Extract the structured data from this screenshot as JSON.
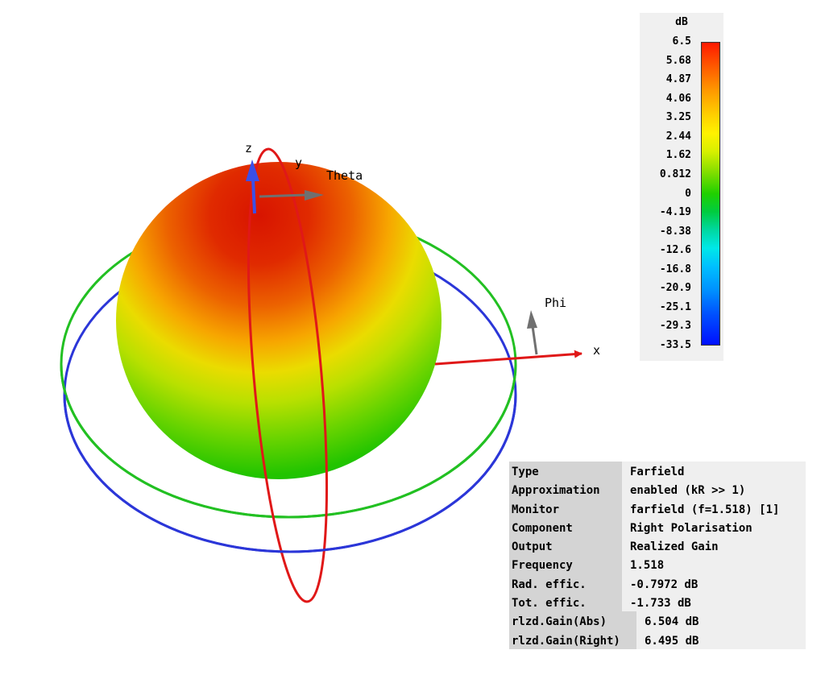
{
  "axes": {
    "x": "x",
    "y": "y",
    "z": "z",
    "theta": "Theta",
    "phi": "Phi"
  },
  "legend": {
    "unit": "dB",
    "ticks": [
      "6.5",
      "5.68",
      "4.87",
      "4.06",
      "3.25",
      "2.44",
      "1.62",
      "0.812",
      "0",
      "-4.19",
      "-8.38",
      "-12.6",
      "-16.8",
      "-20.9",
      "-25.1",
      "-29.3",
      "-33.5"
    ]
  },
  "info": [
    {
      "key": "Type",
      "value": "Farfield"
    },
    {
      "key": "Approximation",
      "value": "enabled (kR >> 1)"
    },
    {
      "key": "Monitor",
      "value": "farfield (f=1.518) [1]"
    },
    {
      "key": "Component",
      "value": "Right Polarisation"
    },
    {
      "key": "Output",
      "value": "Realized Gain"
    },
    {
      "key": "Frequency",
      "value": "1.518"
    },
    {
      "key": "Rad. effic.",
      "value": "-0.7972 dB"
    },
    {
      "key": "Tot. effic.",
      "value": "-1.733 dB"
    },
    {
      "key": "rlzd.Gain(Abs)",
      "value": "6.504 dB"
    },
    {
      "key": "rlzd.Gain(Right)",
      "value": "6.495 dB"
    }
  ],
  "colors": {
    "x_axis": "#e01818",
    "z_axis": "#3b4fe8",
    "theta_phi": "#707070",
    "ring_red": "#e01818",
    "ring_blue": "#2b36d8",
    "ring_green": "#22c022"
  }
}
